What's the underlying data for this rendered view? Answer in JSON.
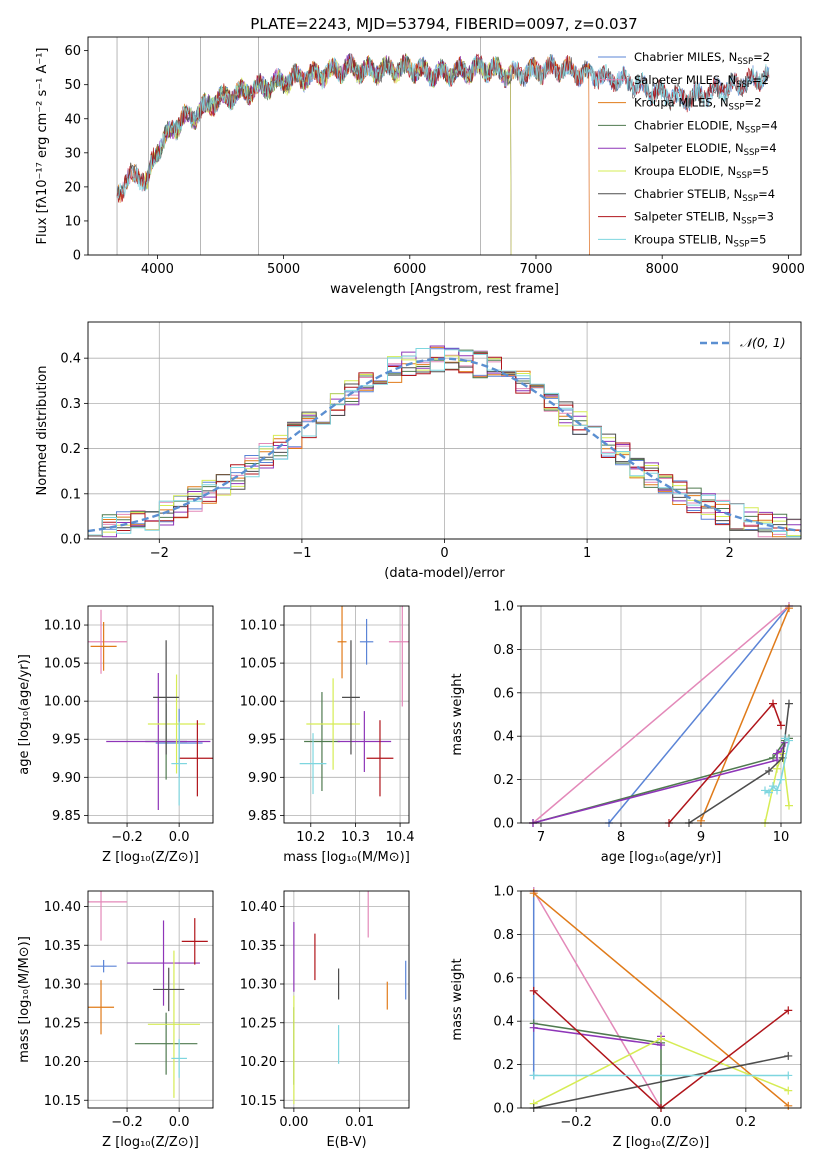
{
  "title": "PLATE=2243, MJD=53794, FIBERID=0097, z=0.037",
  "colors": {
    "c0": "#5b84d6",
    "c1": "#e389b9",
    "c2": "#e07b1a",
    "c3": "#4f7a4f",
    "c4": "#8e35b8",
    "c5": "#d6ec54",
    "c6": "#4d4d4d",
    "c7": "#b0151b",
    "c8": "#7ed6df",
    "normal": "#5b8fd1",
    "grid": "#b0b0b0"
  },
  "chart_data": [
    {
      "id": "spectrum",
      "type": "line",
      "xlabel": "wavelength [Angstrom, rest frame]",
      "ylabel": "Flux [fλ10⁻¹⁷ erg cm⁻² s⁻¹ A⁻¹]",
      "xlim": [
        3450,
        9100
      ],
      "ylim": [
        0,
        64
      ],
      "xticks": [
        4000,
        5000,
        6000,
        7000,
        8000,
        9000
      ],
      "yticks": [
        0,
        10,
        20,
        30,
        40,
        50,
        60
      ],
      "grid": false,
      "legend_position": "top-right",
      "legend": [
        {
          "name": "Chabrier MILES, N",
          "sub": "SSP",
          "tail": "=2",
          "color_key": "c0"
        },
        {
          "name": "Salpeter MILES, N",
          "sub": "SSP",
          "tail": "=2",
          "color_key": "c1"
        },
        {
          "name": "Kroupa MILES, N",
          "sub": "SSP",
          "tail": "=2",
          "color_key": "c2"
        },
        {
          "name": "Chabrier ELODIE, N",
          "sub": "SSP",
          "tail": "=4",
          "color_key": "c3"
        },
        {
          "name": "Salpeter ELODIE, N",
          "sub": "SSP",
          "tail": "=4",
          "color_key": "c4"
        },
        {
          "name": "Kroupa ELODIE, N",
          "sub": "SSP",
          "tail": "=5",
          "color_key": "c5"
        },
        {
          "name": "Chabrier STELIB, N",
          "sub": "SSP",
          "tail": "=4",
          "color_key": "c6"
        },
        {
          "name": "Salpeter STELIB, N",
          "sub": "SSP",
          "tail": "=3",
          "color_key": "c7"
        },
        {
          "name": "Kroupa STELIB, N",
          "sub": "SSP",
          "tail": "=5",
          "color_key": "c8"
        }
      ],
      "continuum": [
        [
          3680,
          18
        ],
        [
          3760,
          22
        ],
        [
          3840,
          24
        ],
        [
          3920,
          21
        ],
        [
          3980,
          30
        ],
        [
          4100,
          36
        ],
        [
          4200,
          40
        ],
        [
          4300,
          41
        ],
        [
          4400,
          44
        ],
        [
          4500,
          46
        ],
        [
          4700,
          48
        ],
        [
          4900,
          50
        ],
        [
          5100,
          52
        ],
        [
          5300,
          53
        ],
        [
          5500,
          55
        ],
        [
          5700,
          54
        ],
        [
          6000,
          55
        ],
        [
          6200,
          53
        ],
        [
          6400,
          54
        ],
        [
          6600,
          55
        ],
        [
          6800,
          53
        ],
        [
          7000,
          54
        ],
        [
          7200,
          55
        ],
        [
          7400,
          53
        ],
        [
          7600,
          52
        ],
        [
          7800,
          50
        ],
        [
          8000,
          47
        ],
        [
          8200,
          46
        ],
        [
          8400,
          48
        ],
        [
          8600,
          50
        ],
        [
          8850,
          53
        ]
      ],
      "series_ranges": [
        {
          "color_key": "c0",
          "range": [
            3680,
            8850
          ]
        },
        {
          "color_key": "c1",
          "range": [
            3680,
            7420
          ]
        },
        {
          "color_key": "c2",
          "range": [
            3680,
            7420
          ]
        },
        {
          "color_key": "c3",
          "range": [
            3900,
            6800
          ]
        },
        {
          "color_key": "c4",
          "range": [
            3900,
            6800
          ]
        },
        {
          "color_key": "c5",
          "range": [
            3900,
            6800
          ]
        },
        {
          "color_key": "c6",
          "range": [
            3680,
            8850
          ]
        },
        {
          "color_key": "c7",
          "range": [
            3680,
            8850
          ]
        },
        {
          "color_key": "c8",
          "range": [
            3680,
            8850
          ]
        }
      ]
    },
    {
      "id": "residuals",
      "type": "histogram",
      "xlabel": "(data-model)/error",
      "ylabel": "Normed distribution",
      "xlim": [
        -2.5,
        2.5
      ],
      "ylim": [
        0,
        0.48
      ],
      "xticks": [
        -2,
        -1,
        0,
        1,
        2
      ],
      "yticks": [
        0.0,
        0.1,
        0.2,
        0.3,
        0.4
      ],
      "grid": true,
      "legend_position": "top-right",
      "legend": [
        {
          "name": "𝒩(0, 1)",
          "color_key": "normal",
          "style": "dashed"
        }
      ],
      "bin_width": 0.1,
      "bin_range": [
        -2.5,
        2.5
      ]
    },
    {
      "id": "age_vs_Z",
      "type": "errorbar",
      "xlabel": "Z [log₁₀(Z/Z⊙)]",
      "ylabel": "age  [log₁₀(age/yr)]",
      "xlim": [
        -0.35,
        0.13
      ],
      "ylim": [
        9.84,
        10.125
      ],
      "xticks": [
        -0.2,
        0.0
      ],
      "yticks": [
        9.85,
        9.9,
        9.95,
        10.0,
        10.05,
        10.1
      ],
      "grid": true,
      "points": [
        {
          "color_key": "c0",
          "x": 0.0,
          "xerr": 0.09,
          "y": 9.945,
          "yerr": 0.045
        },
        {
          "color_key": "c1",
          "x": -0.3,
          "xerr": 0.1,
          "y": 10.078,
          "yerr": 0.042
        },
        {
          "color_key": "c2",
          "x": -0.29,
          "xerr": 0.05,
          "y": 10.072,
          "yerr": 0.032
        },
        {
          "color_key": "c3",
          "x": -0.05,
          "xerr": 0.08,
          "y": 9.947,
          "yerr": 0.05
        },
        {
          "color_key": "c4",
          "x": -0.08,
          "xerr": 0.2,
          "y": 9.947,
          "yerr": 0.09
        },
        {
          "color_key": "c5",
          "x": -0.01,
          "xerr": 0.11,
          "y": 9.97,
          "yerr": 0.065
        },
        {
          "color_key": "c6",
          "x": -0.05,
          "xerr": 0.05,
          "y": 10.005,
          "yerr": 0.075
        },
        {
          "color_key": "c7",
          "x": 0.07,
          "xerr": 0.07,
          "y": 9.925,
          "yerr": 0.05
        },
        {
          "color_key": "c8",
          "x": 0.0,
          "xerr": 0.03,
          "y": 9.918,
          "yerr": 0.055
        }
      ]
    },
    {
      "id": "age_vs_mass",
      "type": "errorbar",
      "xlabel": "mass [log₁₀(M/M⊙)]",
      "ylabel": "",
      "xlim": [
        10.14,
        10.42
      ],
      "ylim": [
        9.84,
        10.125
      ],
      "xticks": [
        10.2,
        10.3,
        10.4
      ],
      "yticks": [
        9.85,
        9.9,
        9.95,
        10.0,
        10.05,
        10.1
      ],
      "grid": true,
      "points": [
        {
          "color_key": "c0",
          "x": 10.325,
          "xerr": 0.015,
          "y": 10.078,
          "yerr": 0.03
        },
        {
          "color_key": "c1",
          "x": 10.405,
          "xerr": 0.03,
          "y": 10.078,
          "yerr": 0.085
        },
        {
          "color_key": "c2",
          "x": 10.27,
          "xerr": 0.01,
          "y": 10.078,
          "yerr": 0.048
        },
        {
          "color_key": "c3",
          "x": 10.225,
          "xerr": 0.04,
          "y": 9.947,
          "yerr": 0.065
        },
        {
          "color_key": "c4",
          "x": 10.32,
          "xerr": 0.06,
          "y": 9.947,
          "yerr": 0.04
        },
        {
          "color_key": "c5",
          "x": 10.25,
          "xerr": 0.06,
          "y": 9.97,
          "yerr": 0.06
        },
        {
          "color_key": "c6",
          "x": 10.29,
          "xerr": 0.02,
          "y": 10.005,
          "yerr": 0.075
        },
        {
          "color_key": "c7",
          "x": 10.355,
          "xerr": 0.03,
          "y": 9.925,
          "yerr": 0.05
        },
        {
          "color_key": "c8",
          "x": 10.205,
          "xerr": 0.03,
          "y": 9.918,
          "yerr": 0.04
        }
      ]
    },
    {
      "id": "weight_vs_age",
      "type": "line",
      "xlabel": "age  [log₁₀(age/yr)]",
      "ylabel": "mass weight",
      "xlim": [
        6.75,
        10.25
      ],
      "ylim": [
        0,
        1
      ],
      "xticks": [
        7,
        8,
        9,
        10
      ],
      "yticks": [
        0.0,
        0.2,
        0.4,
        0.6,
        0.8,
        1.0
      ],
      "grid": true,
      "series": [
        {
          "color_key": "c0",
          "points": [
            [
              7.85,
              0.0
            ],
            [
              10.1,
              1.0
            ]
          ]
        },
        {
          "color_key": "c1",
          "points": [
            [
              6.9,
              0.0
            ],
            [
              10.1,
              1.0
            ]
          ]
        },
        {
          "color_key": "c2",
          "points": [
            [
              9.0,
              0.01
            ],
            [
              10.1,
              0.99
            ]
          ]
        },
        {
          "color_key": "c3",
          "points": [
            [
              6.9,
              0.0
            ],
            [
              9.9,
              0.3
            ],
            [
              10.05,
              0.38
            ],
            [
              10.1,
              0.39
            ]
          ]
        },
        {
          "color_key": "c4",
          "points": [
            [
              6.9,
              0.0
            ],
            [
              9.95,
              0.29
            ],
            [
              9.95,
              0.32
            ],
            [
              10.0,
              0.33
            ],
            [
              10.05,
              0.37
            ]
          ]
        },
        {
          "color_key": "c5",
          "points": [
            [
              9.8,
              0.0
            ],
            [
              9.95,
              0.25
            ],
            [
              10.02,
              0.32
            ],
            [
              10.1,
              0.08
            ]
          ]
        },
        {
          "color_key": "c6",
          "points": [
            [
              8.85,
              0.0
            ],
            [
              9.85,
              0.24
            ],
            [
              10.02,
              0.3
            ],
            [
              10.1,
              0.55
            ]
          ]
        },
        {
          "color_key": "c7",
          "points": [
            [
              8.6,
              0.0
            ],
            [
              9.9,
              0.55
            ],
            [
              10.0,
              0.45
            ]
          ]
        },
        {
          "color_key": "c8",
          "points": [
            [
              9.8,
              0.15
            ],
            [
              9.85,
              0.14
            ],
            [
              9.9,
              0.17
            ],
            [
              9.95,
              0.15
            ],
            [
              10.0,
              0.2
            ],
            [
              10.1,
              0.38
            ],
            [
              10.05,
              0.39
            ]
          ]
        }
      ]
    },
    {
      "id": "mass_vs_Z",
      "type": "errorbar",
      "xlabel": "Z [log₁₀(Z/Z⊙)]",
      "ylabel": "mass [log₁₀(M/M⊙)]",
      "xlim": [
        -0.35,
        0.13
      ],
      "ylim": [
        10.14,
        10.42
      ],
      "xticks": [
        -0.2,
        0.0
      ],
      "yticks": [
        10.15,
        10.2,
        10.25,
        10.3,
        10.35,
        10.4
      ],
      "grid": true,
      "points": [
        {
          "color_key": "c0",
          "x": -0.29,
          "xerr": 0.05,
          "y": 10.323,
          "yerr": 0.008
        },
        {
          "color_key": "c1",
          "x": -0.3,
          "xerr": 0.1,
          "y": 10.406,
          "yerr": 0.05
        },
        {
          "color_key": "c2",
          "x": -0.3,
          "xerr": 0.05,
          "y": 10.27,
          "yerr": 0.035
        },
        {
          "color_key": "c3",
          "x": -0.05,
          "xerr": 0.12,
          "y": 10.223,
          "yerr": 0.04
        },
        {
          "color_key": "c4",
          "x": -0.06,
          "xerr": 0.14,
          "y": 10.327,
          "yerr": 0.055
        },
        {
          "color_key": "c5",
          "x": -0.02,
          "xerr": 0.1,
          "y": 10.248,
          "yerr": 0.095
        },
        {
          "color_key": "c6",
          "x": -0.04,
          "xerr": 0.06,
          "y": 10.293,
          "yerr": 0.028
        },
        {
          "color_key": "c7",
          "x": 0.06,
          "xerr": 0.05,
          "y": 10.355,
          "yerr": 0.03
        },
        {
          "color_key": "c8",
          "x": 0.0,
          "xerr": 0.03,
          "y": 10.204,
          "yerr": 0.025
        }
      ]
    },
    {
      "id": "mass_vs_ebv",
      "type": "errorbar",
      "xlabel": "E(B-V)",
      "ylabel": "",
      "xlim": [
        -0.0015,
        0.0175
      ],
      "ylim": [
        10.14,
        10.42
      ],
      "xticks": [
        0.0,
        0.01
      ],
      "yticks": [
        10.15,
        10.2,
        10.25,
        10.3,
        10.35,
        10.4
      ],
      "grid": true,
      "points": [
        {
          "color_key": "c0",
          "x": 0.017,
          "xerr": 0.0,
          "y": 10.305,
          "yerr": 0.025
        },
        {
          "color_key": "c1",
          "x": 0.0113,
          "xerr": 0.0,
          "y": 10.41,
          "yerr": 0.05
        },
        {
          "color_key": "c2",
          "x": 0.0142,
          "xerr": 0.0,
          "y": 10.285,
          "yerr": 0.018
        },
        {
          "color_key": "c3",
          "x": 0.0,
          "xerr": 0.0,
          "y": 10.22,
          "yerr": 0.05
        },
        {
          "color_key": "c4",
          "x": 0.0,
          "xerr": 0.0,
          "y": 10.335,
          "yerr": 0.045
        },
        {
          "color_key": "c5",
          "x": 0.0,
          "xerr": 0.0,
          "y": 10.215,
          "yerr": 0.07
        },
        {
          "color_key": "c6",
          "x": 0.0068,
          "xerr": 0.0,
          "y": 10.3,
          "yerr": 0.02
        },
        {
          "color_key": "c7",
          "x": 0.0032,
          "xerr": 0.0,
          "y": 10.335,
          "yerr": 0.03
        },
        {
          "color_key": "c8",
          "x": 0.0068,
          "xerr": 0.0,
          "y": 10.222,
          "yerr": 0.025
        }
      ]
    },
    {
      "id": "weight_vs_Z",
      "type": "line",
      "xlabel": "Z [log₁₀(Z/Z⊙)]",
      "ylabel": "mass weight",
      "xlim": [
        -0.33,
        0.33
      ],
      "ylim": [
        0,
        1
      ],
      "xticks": [
        -0.2,
        0.0,
        0.2
      ],
      "yticks": [
        0.0,
        0.2,
        0.4,
        0.6,
        0.8,
        1.0
      ],
      "grid": true,
      "series": [
        {
          "color_key": "c0",
          "points": [
            [
              -0.3,
              0.15
            ],
            [
              -0.3,
              1.0
            ]
          ]
        },
        {
          "color_key": "c1",
          "points": [
            [
              -0.3,
              1.0
            ],
            [
              0.0,
              0.0
            ]
          ]
        },
        {
          "color_key": "c2",
          "points": [
            [
              -0.3,
              0.99
            ],
            [
              0.3,
              0.01
            ]
          ]
        },
        {
          "color_key": "c3",
          "points": [
            [
              -0.3,
              0.39
            ],
            [
              0.0,
              0.3
            ],
            [
              0.0,
              0.0
            ]
          ]
        },
        {
          "color_key": "c4",
          "points": [
            [
              -0.3,
              0.37
            ],
            [
              0.0,
              0.29
            ],
            [
              0.0,
              0.33
            ]
          ]
        },
        {
          "color_key": "c5",
          "points": [
            [
              -0.3,
              0.02
            ],
            [
              0.0,
              0.32
            ],
            [
              0.3,
              0.08
            ]
          ]
        },
        {
          "color_key": "c6",
          "points": [
            [
              -0.3,
              0.0
            ],
            [
              0.3,
              0.24
            ]
          ]
        },
        {
          "color_key": "c7",
          "points": [
            [
              -0.3,
              0.54
            ],
            [
              0.0,
              0.0
            ],
            [
              0.3,
              0.45
            ]
          ]
        },
        {
          "color_key": "c8",
          "points": [
            [
              -0.3,
              0.15
            ],
            [
              0.3,
              0.15
            ]
          ]
        }
      ]
    }
  ]
}
